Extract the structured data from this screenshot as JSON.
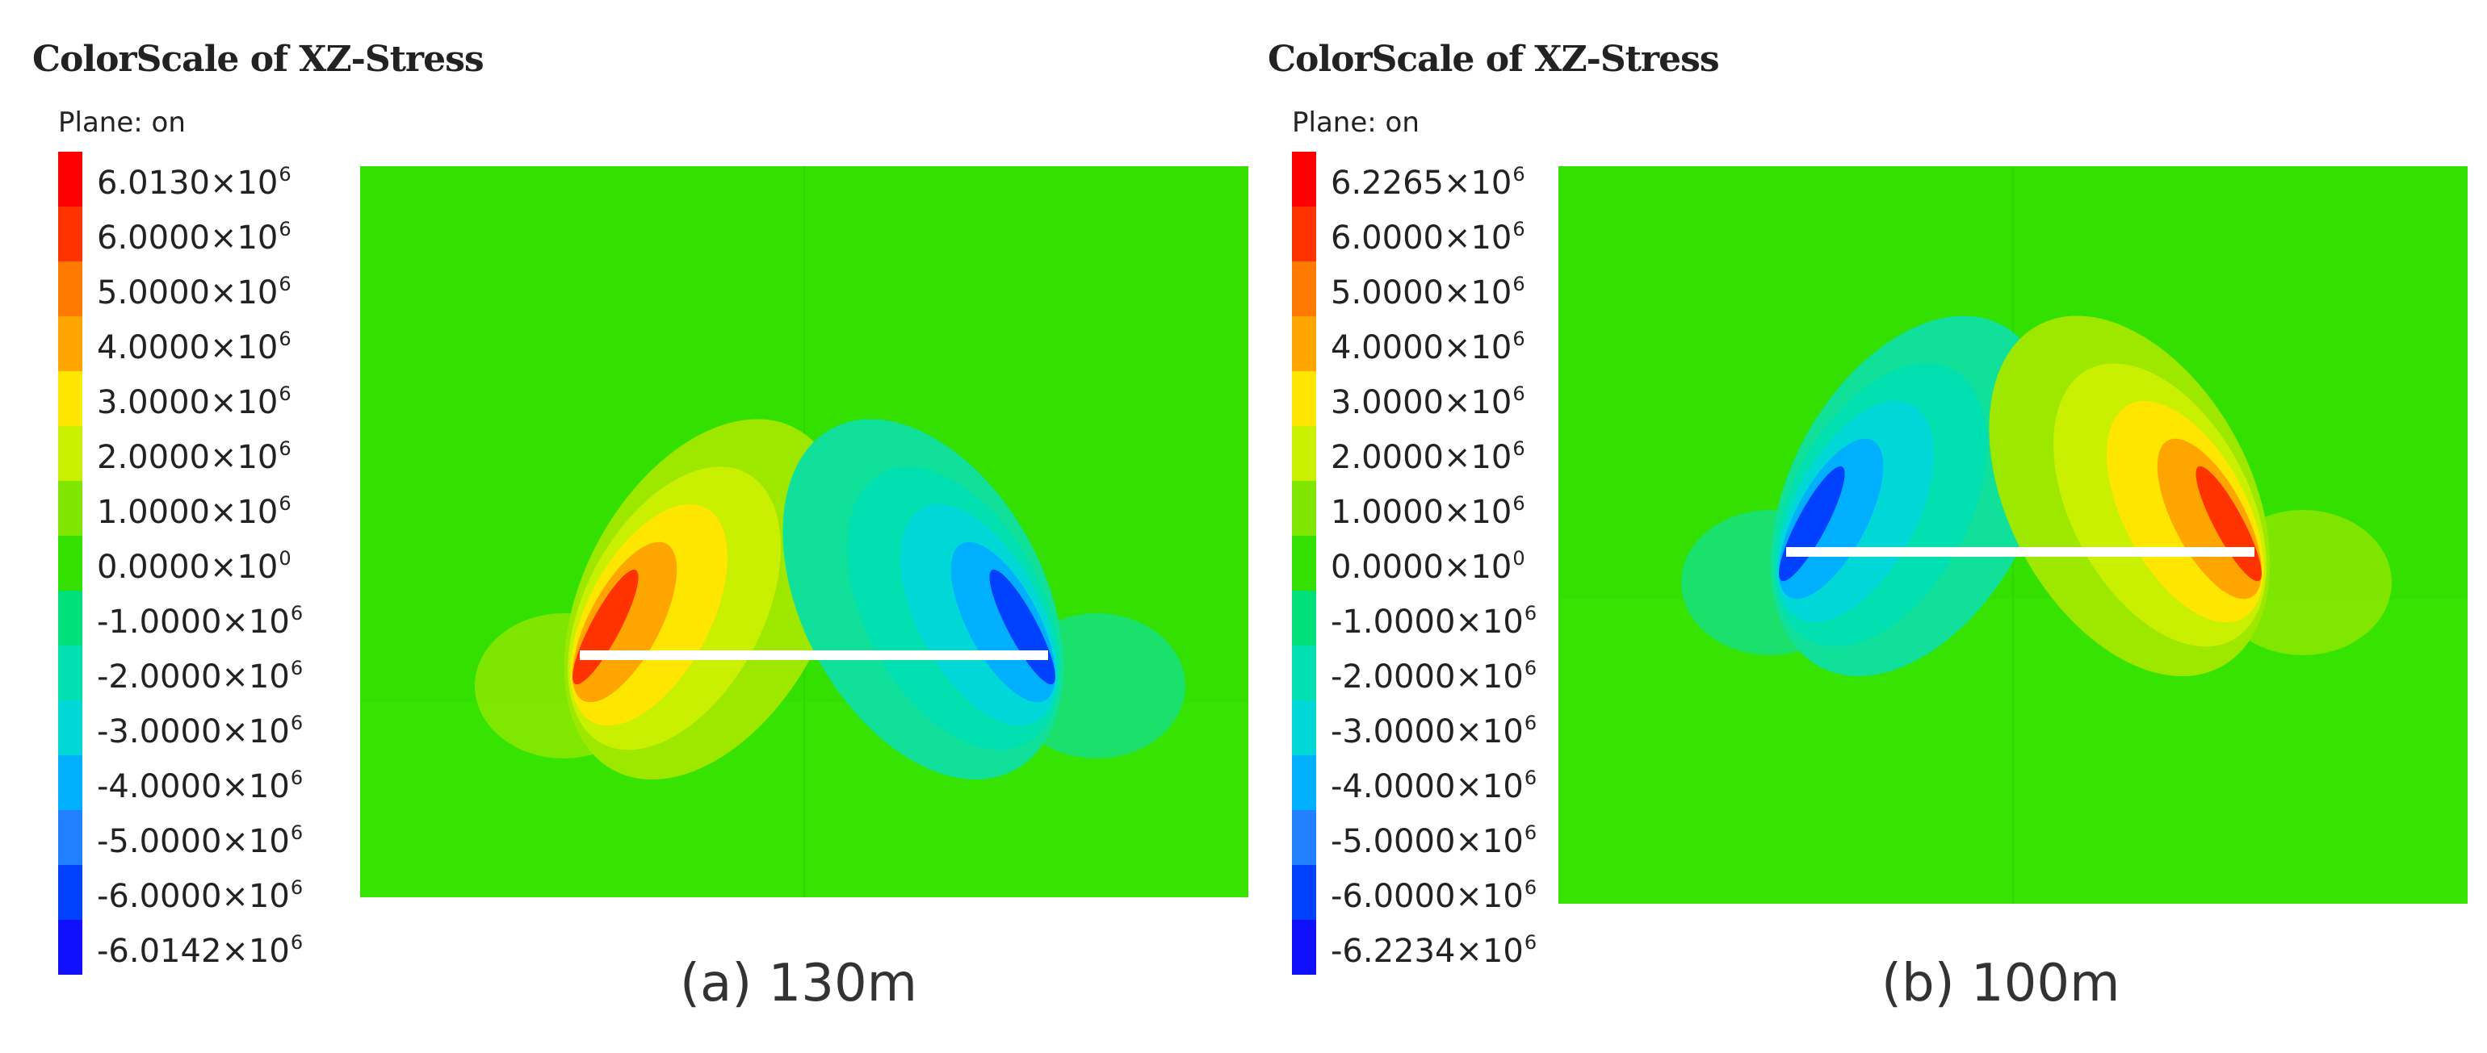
{
  "panels": [
    {
      "title": "ColorScale of XZ-Stress",
      "plane_label": "Plane: on",
      "caption": "(a) 130m",
      "scale_labels": [
        {
          "mantissa": "6.0130",
          "exp": "6"
        },
        {
          "mantissa": "6.0000",
          "exp": "6"
        },
        {
          "mantissa": "5.0000",
          "exp": "6"
        },
        {
          "mantissa": "4.0000",
          "exp": "6"
        },
        {
          "mantissa": "3.0000",
          "exp": "6"
        },
        {
          "mantissa": "2.0000",
          "exp": "6"
        },
        {
          "mantissa": "1.0000",
          "exp": "6"
        },
        {
          "mantissa": "0.0000",
          "exp": "0"
        },
        {
          "mantissa": "-1.0000",
          "exp": "6"
        },
        {
          "mantissa": "-2.0000",
          "exp": "6"
        },
        {
          "mantissa": "-3.0000",
          "exp": "6"
        },
        {
          "mantissa": "-4.0000",
          "exp": "6"
        },
        {
          "mantissa": "-5.0000",
          "exp": "6"
        },
        {
          "mantissa": "-6.0000",
          "exp": "6"
        },
        {
          "mantissa": "-6.0142",
          "exp": "6"
        }
      ],
      "left_polarity": "positive",
      "right_polarity": "negative"
    },
    {
      "title": "ColorScale of XZ-Stress",
      "plane_label": "Plane: on",
      "caption": "(b) 100m",
      "scale_labels": [
        {
          "mantissa": "6.2265",
          "exp": "6"
        },
        {
          "mantissa": "6.0000",
          "exp": "6"
        },
        {
          "mantissa": "5.0000",
          "exp": "6"
        },
        {
          "mantissa": "4.0000",
          "exp": "6"
        },
        {
          "mantissa": "3.0000",
          "exp": "6"
        },
        {
          "mantissa": "2.0000",
          "exp": "6"
        },
        {
          "mantissa": "1.0000",
          "exp": "6"
        },
        {
          "mantissa": "0.0000",
          "exp": "0"
        },
        {
          "mantissa": "-1.0000",
          "exp": "6"
        },
        {
          "mantissa": "-2.0000",
          "exp": "6"
        },
        {
          "mantissa": "-3.0000",
          "exp": "6"
        },
        {
          "mantissa": "-4.0000",
          "exp": "6"
        },
        {
          "mantissa": "-5.0000",
          "exp": "6"
        },
        {
          "mantissa": "-6.0000",
          "exp": "6"
        },
        {
          "mantissa": "-6.2234",
          "exp": "6"
        }
      ],
      "left_polarity": "negative",
      "right_polarity": "positive"
    }
  ],
  "colorscale": [
    "#ff0000",
    "#ff3300",
    "#ff7a00",
    "#ffa500",
    "#ffe600",
    "#c8f000",
    "#80e600",
    "#33e000",
    "#00e07a",
    "#00e0b0",
    "#00d8d8",
    "#00b0ff",
    "#2080ff",
    "#0040ff",
    "#1010ff"
  ],
  "background_color": "#33e000",
  "cutout_color": "#ffffff"
}
